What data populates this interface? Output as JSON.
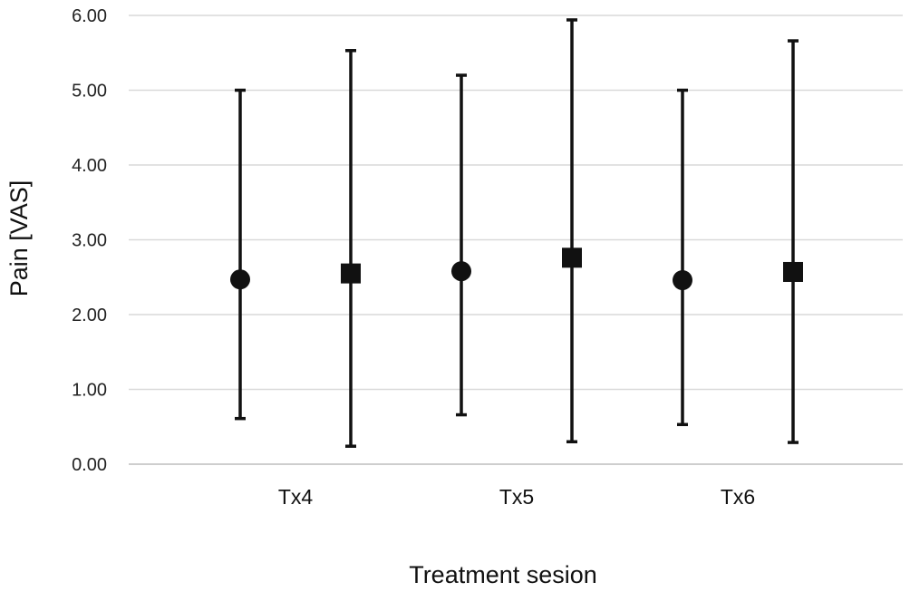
{
  "chart_data": {
    "type": "scatter",
    "title": "",
    "xlabel": "Treatment sesion",
    "ylabel": "Pain [VAS]",
    "ylim": [
      0,
      6
    ],
    "yticks": [
      "0.00",
      "1.00",
      "2.00",
      "3.00",
      "4.00",
      "5.00",
      "6.00"
    ],
    "grid": true,
    "categories": [
      "Tx4",
      "Tx5",
      "Tx6"
    ],
    "series": [
      {
        "marker": "circle",
        "color": "#111111",
        "points": [
          {
            "category": "Tx4",
            "mean": 2.47,
            "low": 0.61,
            "high": 5.0
          },
          {
            "category": "Tx5",
            "mean": 2.58,
            "low": 0.66,
            "high": 5.2
          },
          {
            "category": "Tx6",
            "mean": 2.46,
            "low": 0.53,
            "high": 5.0
          }
        ]
      },
      {
        "marker": "square",
        "color": "#111111",
        "points": [
          {
            "category": "Tx4",
            "mean": 2.55,
            "low": 0.24,
            "high": 5.53
          },
          {
            "category": "Tx5",
            "mean": 2.76,
            "low": 0.3,
            "high": 5.94
          },
          {
            "category": "Tx6",
            "mean": 2.57,
            "low": 0.29,
            "high": 5.66
          }
        ]
      }
    ]
  }
}
